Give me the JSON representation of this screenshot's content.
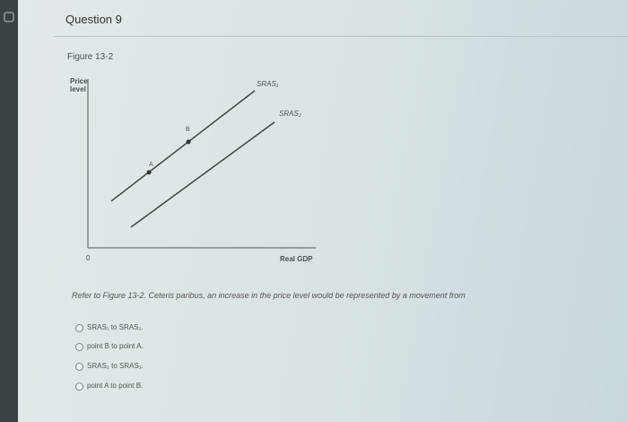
{
  "question": {
    "title": "Question 9",
    "prompt": "Refer to Figure 13-2. Ceteris paribus, an increase in the price level would be represented by a movement from",
    "options": [
      "SRAS₁ to SRAS₂.",
      "point B to point A.",
      "SRAS₂ to SRAS₁.",
      "point A to point B."
    ]
  },
  "figure": {
    "label": "Figure 13-2",
    "y_axis_label": "Price level",
    "x_axis_label": "Real GDP",
    "origin": "0",
    "curves": [
      {
        "label": "SRAS₁"
      },
      {
        "label": "SRAS₂"
      }
    ],
    "points": [
      {
        "label": "A"
      },
      {
        "label": "B"
      }
    ]
  }
}
